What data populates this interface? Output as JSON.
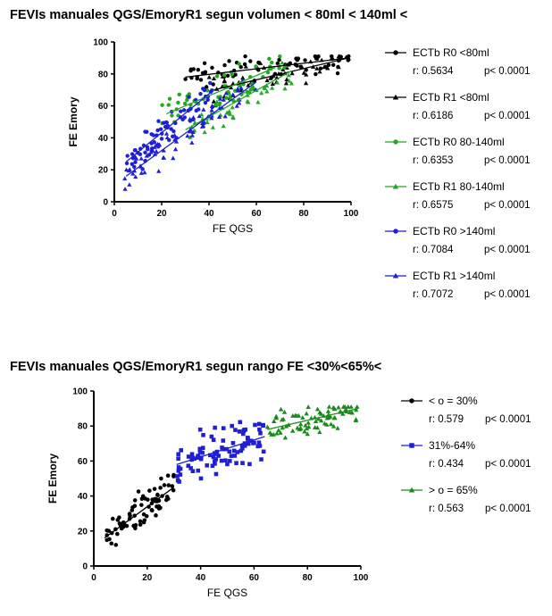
{
  "chart_data": [
    {
      "type": "scatter",
      "title": "FEVIs manuales QGS/EmoryR1 segun volumen < 80ml < 140ml <",
      "xlabel": "FE QGS",
      "ylabel": "FE Emory",
      "xlim": [
        0,
        100
      ],
      "ylim": [
        0,
        100
      ],
      "xticks": [
        "0",
        "20",
        "40",
        "60",
        "80",
        "100"
      ],
      "yticks": [
        "0",
        "20",
        "40",
        "60",
        "80",
        "100"
      ],
      "legend_position": "right",
      "series": [
        {
          "name": "ECTb R0 <80ml",
          "color": "#000000",
          "marker": "circle",
          "r_text": "r: 0.5634",
          "p_text": "p< 0.0001",
          "x_range": [
            28,
            99
          ],
          "fit": [
            [
              30,
              78
            ],
            [
              99,
              90
            ]
          ],
          "center": 70,
          "spread": 7,
          "count": 70
        },
        {
          "name": "ECTb R1 <80ml",
          "color": "#000000",
          "marker": "triangle",
          "r_text": "r: 0.6186",
          "p_text": "p< 0.0001",
          "x_range": [
            40,
            99
          ],
          "fit": [
            [
              42,
              70
            ],
            [
              99,
              90
            ]
          ],
          "center": 72,
          "spread": 7,
          "count": 60
        },
        {
          "name": "ECTb R0 80-140ml",
          "color": "#22a822",
          "marker": "circle",
          "r_text": "r: 0.6353",
          "p_text": "p< 0.0001",
          "x_range": [
            20,
            70
          ],
          "fit": [
            [
              22,
              55
            ],
            [
              68,
              84
            ]
          ],
          "center": 45,
          "spread": 7,
          "count": 55
        },
        {
          "name": "ECTb R1 80-140ml",
          "color": "#22a822",
          "marker": "triangle",
          "r_text": "r: 0.6575",
          "p_text": "p< 0.0001",
          "x_range": [
            30,
            75
          ],
          "fit": [
            [
              30,
              45
            ],
            [
              75,
              82
            ]
          ],
          "center": 50,
          "spread": 8,
          "count": 55
        },
        {
          "name": "ECTb R0 >140ml",
          "color": "#1f1fd6",
          "marker": "circle",
          "r_text": "r: 0.7084",
          "p_text": "p< 0.0001",
          "x_range": [
            4,
            42
          ],
          "fit": [
            [
              5,
              25
            ],
            [
              42,
              70
            ]
          ],
          "center": 18,
          "spread": 7,
          "count": 75
        },
        {
          "name": "ECTb R1 >140ml",
          "color": "#1f1fd6",
          "marker": "triangle",
          "r_text": "r: 0.7072",
          "p_text": "p< 0.0001",
          "x_range": [
            4,
            60
          ],
          "fit": [
            [
              5,
              16
            ],
            [
              60,
              75
            ]
          ],
          "center": 25,
          "spread": 7,
          "count": 70
        }
      ]
    },
    {
      "type": "scatter",
      "title": "FEVIs manuales QGS/EmoryR1 segun rango FE <30%<65%<",
      "xlabel": "FE QGS",
      "ylabel": "FE Emory",
      "xlim": [
        0,
        100
      ],
      "ylim": [
        0,
        100
      ],
      "xticks": [
        "0",
        "20",
        "40",
        "60",
        "80",
        "100"
      ],
      "yticks": [
        "0",
        "20",
        "40",
        "60",
        "80",
        "100"
      ],
      "legend_position": "right",
      "series": [
        {
          "name": "< o = 30%",
          "color": "#000000",
          "marker": "circle",
          "r_text": "r: 0.579",
          "p_text": "p< 0.0001",
          "x_range": [
            4,
            30
          ],
          "fit": [
            [
              4,
              16
            ],
            [
              30,
              45
            ]
          ],
          "center": 17,
          "spread": 7,
          "count": 80
        },
        {
          "name": "31%-64%",
          "color": "#1f1fd6",
          "marker": "square",
          "r_text": "r: 0.434",
          "p_text": "p< 0.0001",
          "x_range": [
            31,
            64
          ],
          "fit": [
            [
              31,
              58
            ],
            [
              64,
              74
            ]
          ],
          "center": 48,
          "spread": 9,
          "count": 95
        },
        {
          "name": "> o = 65%",
          "color": "#1a8a1a",
          "marker": "triangle",
          "r_text": "r: 0.563",
          "p_text": "p< 0.0001",
          "x_range": [
            65,
            99
          ],
          "fit": [
            [
              65,
              78
            ],
            [
              99,
              90
            ]
          ],
          "center": 80,
          "spread": 5,
          "count": 85
        }
      ]
    }
  ]
}
